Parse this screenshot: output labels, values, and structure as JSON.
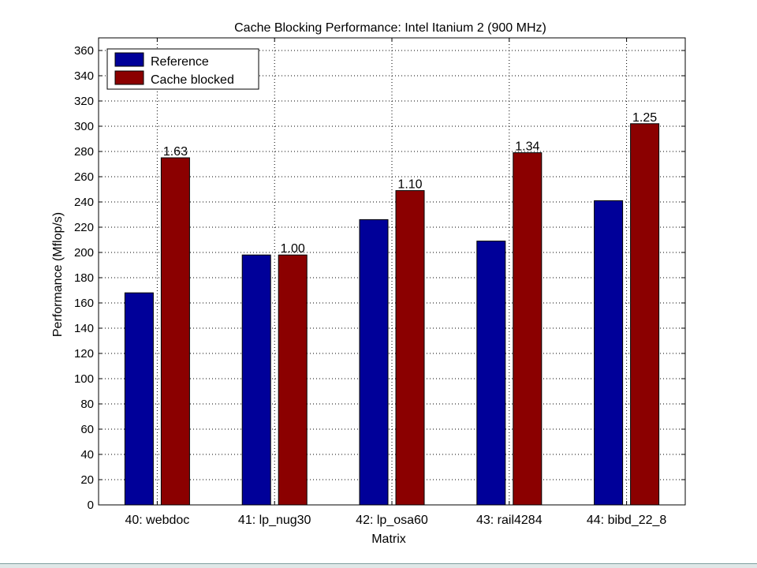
{
  "chart_data": {
    "type": "bar",
    "title": "Cache Blocking Performance: Intel Itanium 2 (900 MHz)",
    "xlabel": "Matrix",
    "ylabel": "Performance (Mflop/s)",
    "ylim": [
      0,
      370
    ],
    "yticks": [
      0,
      20,
      40,
      60,
      80,
      100,
      120,
      140,
      160,
      180,
      200,
      220,
      240,
      260,
      280,
      300,
      320,
      340,
      360
    ],
    "grid": true,
    "legend_position": "top-left",
    "categories": [
      "40: webdoc",
      "41: lp_nug30",
      "42: lp_osa60",
      "43: rail4284",
      "44: bibd_22_8"
    ],
    "series": [
      {
        "name": "Reference",
        "color": "#000099",
        "values": [
          168,
          198,
          226,
          209,
          241
        ]
      },
      {
        "name": "Cache blocked",
        "color": "#8b0000",
        "values": [
          275,
          198,
          249,
          279,
          302
        ]
      }
    ],
    "annotations": [
      "1.63",
      "1.00",
      "1.10",
      "1.34",
      "1.25"
    ]
  }
}
